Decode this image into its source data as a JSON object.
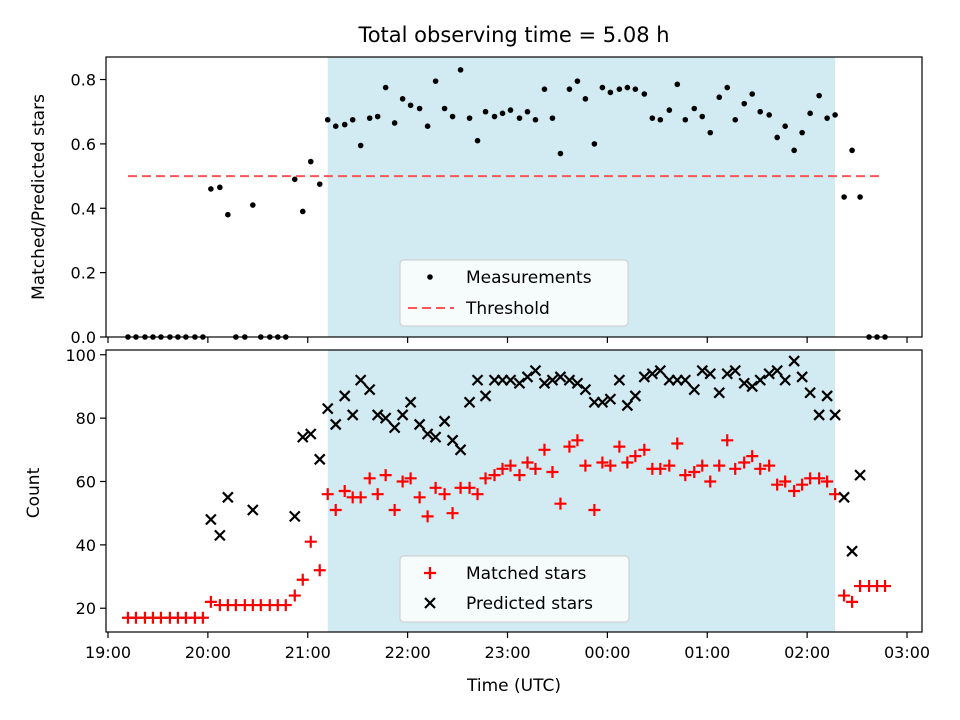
{
  "figure": {
    "title": "Total observing time = 5.08 h"
  },
  "colors": {
    "highlight": "#add8e6",
    "threshold": "#ff5555",
    "matched": "#ff0000",
    "predicted": "#000000",
    "measurement": "#000000"
  },
  "chart_data": [
    {
      "type": "scatter",
      "panel": "top",
      "title": "Total observing time = 5.08 h",
      "xlabel": "",
      "ylabel": "Matched/Predicted stars",
      "x_unit": "hours since 19:00 UTC",
      "xlim": [
        18.98,
        27.15
      ],
      "ylim": [
        0,
        0.87
      ],
      "yticks": [
        0.0,
        0.2,
        0.4,
        0.6,
        0.8
      ],
      "ytick_labels": [
        "0.0",
        "0.2",
        "0.4",
        "0.6",
        "0.8"
      ],
      "highlight_span": [
        21.2,
        26.28
      ],
      "threshold": {
        "value": 0.5,
        "x_range": [
          19.2,
          26.77
        ],
        "name": "Threshold",
        "style": "dashed"
      },
      "legend": {
        "position": "lower-center",
        "entries": [
          "Measurements",
          "Threshold"
        ]
      },
      "series": [
        {
          "name": "Measurements",
          "marker": "dot",
          "points": [
            [
              19.2,
              0
            ],
            [
              19.28,
              0
            ],
            [
              19.37,
              0
            ],
            [
              19.45,
              0
            ],
            [
              19.53,
              0
            ],
            [
              19.62,
              0
            ],
            [
              19.7,
              0
            ],
            [
              19.78,
              0
            ],
            [
              19.87,
              0
            ],
            [
              19.95,
              0
            ],
            [
              20.03,
              0.46
            ],
            [
              20.12,
              0.465
            ],
            [
              20.2,
              0.38
            ],
            [
              20.28,
              0
            ],
            [
              20.37,
              0
            ],
            [
              20.45,
              0.41
            ],
            [
              20.53,
              0
            ],
            [
              20.62,
              0
            ],
            [
              20.7,
              0
            ],
            [
              20.78,
              0
            ],
            [
              20.87,
              0.49
            ],
            [
              20.95,
              0.39
            ],
            [
              21.03,
              0.545
            ],
            [
              21.12,
              0.475
            ],
            [
              21.2,
              0.675
            ],
            [
              21.28,
              0.655
            ],
            [
              21.37,
              0.66
            ],
            [
              21.45,
              0.675
            ],
            [
              21.53,
              0.595
            ],
            [
              21.62,
              0.68
            ],
            [
              21.7,
              0.685
            ],
            [
              21.78,
              0.775
            ],
            [
              21.87,
              0.665
            ],
            [
              21.95,
              0.74
            ],
            [
              22.03,
              0.72
            ],
            [
              22.12,
              0.71
            ],
            [
              22.2,
              0.655
            ],
            [
              22.28,
              0.795
            ],
            [
              22.37,
              0.71
            ],
            [
              22.45,
              0.685
            ],
            [
              22.53,
              0.83
            ],
            [
              22.62,
              0.68
            ],
            [
              22.7,
              0.61
            ],
            [
              22.78,
              0.7
            ],
            [
              22.87,
              0.685
            ],
            [
              22.95,
              0.695
            ],
            [
              23.03,
              0.705
            ],
            [
              23.12,
              0.68
            ],
            [
              23.2,
              0.7
            ],
            [
              23.28,
              0.675
            ],
            [
              23.37,
              0.77
            ],
            [
              23.45,
              0.68
            ],
            [
              23.53,
              0.57
            ],
            [
              23.62,
              0.77
            ],
            [
              23.7,
              0.795
            ],
            [
              23.78,
              0.74
            ],
            [
              23.87,
              0.6
            ],
            [
              23.95,
              0.775
            ],
            [
              24.03,
              0.76
            ],
            [
              24.12,
              0.77
            ],
            [
              24.2,
              0.775
            ],
            [
              24.28,
              0.77
            ],
            [
              24.37,
              0.755
            ],
            [
              24.45,
              0.68
            ],
            [
              24.53,
              0.675
            ],
            [
              24.62,
              0.705
            ],
            [
              24.7,
              0.785
            ],
            [
              24.78,
              0.675
            ],
            [
              24.87,
              0.71
            ],
            [
              24.95,
              0.685
            ],
            [
              25.03,
              0.635
            ],
            [
              25.12,
              0.745
            ],
            [
              25.2,
              0.775
            ],
            [
              25.28,
              0.675
            ],
            [
              25.37,
              0.725
            ],
            [
              25.45,
              0.755
            ],
            [
              25.53,
              0.7
            ],
            [
              25.62,
              0.69
            ],
            [
              25.7,
              0.62
            ],
            [
              25.78,
              0.655
            ],
            [
              25.87,
              0.58
            ],
            [
              25.95,
              0.635
            ],
            [
              26.03,
              0.695
            ],
            [
              26.12,
              0.75
            ],
            [
              26.2,
              0.68
            ],
            [
              26.28,
              0.69
            ],
            [
              26.37,
              0.435
            ],
            [
              26.45,
              0.58
            ],
            [
              26.53,
              0.435
            ],
            [
              26.62,
              0
            ],
            [
              26.7,
              0
            ],
            [
              26.78,
              0
            ]
          ]
        }
      ]
    },
    {
      "type": "scatter",
      "panel": "bottom",
      "xlabel": "Time (UTC)",
      "ylabel": "Count",
      "x_unit": "hours since 19:00 UTC",
      "xlim": [
        18.98,
        27.15
      ],
      "ylim": [
        12.5,
        101.5
      ],
      "yticks": [
        20,
        40,
        60,
        80,
        100
      ],
      "ytick_labels": [
        "20",
        "40",
        "60",
        "80",
        "100"
      ],
      "xticks": [
        19,
        20,
        21,
        22,
        23,
        24,
        25,
        26,
        27
      ],
      "xtick_labels": [
        "19:00",
        "20:00",
        "21:00",
        "22:00",
        "23:00",
        "00:00",
        "01:00",
        "02:00",
        "03:00"
      ],
      "highlight_span": [
        21.2,
        26.28
      ],
      "legend": {
        "position": "lower-center",
        "entries": [
          "Matched stars",
          "Predicted stars"
        ]
      },
      "series": [
        {
          "name": "Matched stars",
          "marker": "plus",
          "points": [
            [
              19.2,
              17
            ],
            [
              19.28,
              17
            ],
            [
              19.37,
              17
            ],
            [
              19.45,
              17
            ],
            [
              19.53,
              17
            ],
            [
              19.62,
              17
            ],
            [
              19.7,
              17
            ],
            [
              19.78,
              17
            ],
            [
              19.87,
              17
            ],
            [
              19.95,
              17
            ],
            [
              20.03,
              22
            ],
            [
              20.12,
              21
            ],
            [
              20.2,
              21
            ],
            [
              20.28,
              21
            ],
            [
              20.37,
              21
            ],
            [
              20.45,
              21
            ],
            [
              20.53,
              21
            ],
            [
              20.62,
              21
            ],
            [
              20.7,
              21
            ],
            [
              20.78,
              21
            ],
            [
              20.87,
              24
            ],
            [
              20.95,
              29
            ],
            [
              21.03,
              41
            ],
            [
              21.12,
              32
            ],
            [
              21.2,
              56
            ],
            [
              21.28,
              51
            ],
            [
              21.37,
              57
            ],
            [
              21.45,
              55
            ],
            [
              21.53,
              55
            ],
            [
              21.62,
              61
            ],
            [
              21.7,
              56
            ],
            [
              21.78,
              62
            ],
            [
              21.87,
              51
            ],
            [
              21.95,
              60
            ],
            [
              22.03,
              61
            ],
            [
              22.12,
              55
            ],
            [
              22.2,
              49
            ],
            [
              22.28,
              58
            ],
            [
              22.37,
              56
            ],
            [
              22.45,
              50
            ],
            [
              22.53,
              58
            ],
            [
              22.62,
              58
            ],
            [
              22.7,
              56
            ],
            [
              22.78,
              61
            ],
            [
              22.87,
              62
            ],
            [
              22.95,
              64
            ],
            [
              23.03,
              65
            ],
            [
              23.12,
              62
            ],
            [
              23.2,
              66
            ],
            [
              23.28,
              64
            ],
            [
              23.37,
              70
            ],
            [
              23.45,
              63
            ],
            [
              23.53,
              53
            ],
            [
              23.62,
              71
            ],
            [
              23.7,
              73
            ],
            [
              23.78,
              65
            ],
            [
              23.87,
              51
            ],
            [
              23.95,
              66
            ],
            [
              24.03,
              65
            ],
            [
              24.12,
              71
            ],
            [
              24.2,
              66
            ],
            [
              24.28,
              68
            ],
            [
              24.37,
              70
            ],
            [
              24.45,
              64
            ],
            [
              24.53,
              64
            ],
            [
              24.62,
              65
            ],
            [
              24.7,
              72
            ],
            [
              24.78,
              62
            ],
            [
              24.87,
              63
            ],
            [
              24.95,
              65
            ],
            [
              25.03,
              60
            ],
            [
              25.12,
              65
            ],
            [
              25.2,
              73
            ],
            [
              25.28,
              64
            ],
            [
              25.37,
              66
            ],
            [
              25.45,
              68
            ],
            [
              25.53,
              64
            ],
            [
              25.62,
              65
            ],
            [
              25.7,
              59
            ],
            [
              25.78,
              60
            ],
            [
              25.87,
              57
            ],
            [
              25.95,
              59
            ],
            [
              26.03,
              61
            ],
            [
              26.12,
              61
            ],
            [
              26.2,
              60
            ],
            [
              26.28,
              56
            ],
            [
              26.37,
              24
            ],
            [
              26.45,
              22
            ],
            [
              26.53,
              27
            ],
            [
              26.62,
              27
            ],
            [
              26.7,
              27
            ],
            [
              26.78,
              27
            ]
          ]
        },
        {
          "name": "Predicted stars",
          "marker": "x",
          "points": [
            [
              20.03,
              48
            ],
            [
              20.12,
              43
            ],
            [
              20.2,
              55
            ],
            [
              20.45,
              51
            ],
            [
              20.87,
              49
            ],
            [
              20.95,
              74
            ],
            [
              21.03,
              75
            ],
            [
              21.12,
              67
            ],
            [
              21.2,
              83
            ],
            [
              21.28,
              78
            ],
            [
              21.37,
              87
            ],
            [
              21.45,
              81
            ],
            [
              21.53,
              92
            ],
            [
              21.62,
              89
            ],
            [
              21.7,
              81
            ],
            [
              21.78,
              80
            ],
            [
              21.87,
              77
            ],
            [
              21.95,
              81
            ],
            [
              22.03,
              85
            ],
            [
              22.12,
              78
            ],
            [
              22.2,
              75
            ],
            [
              22.28,
              74
            ],
            [
              22.37,
              79
            ],
            [
              22.45,
              73
            ],
            [
              22.53,
              70
            ],
            [
              22.62,
              85
            ],
            [
              22.7,
              92
            ],
            [
              22.78,
              87
            ],
            [
              22.87,
              92
            ],
            [
              22.95,
              92
            ],
            [
              23.03,
              92
            ],
            [
              23.12,
              91
            ],
            [
              23.2,
              93
            ],
            [
              23.28,
              95
            ],
            [
              23.37,
              91
            ],
            [
              23.45,
              92
            ],
            [
              23.53,
              93
            ],
            [
              23.62,
              92
            ],
            [
              23.7,
              91
            ],
            [
              23.78,
              89
            ],
            [
              23.87,
              85
            ],
            [
              23.95,
              85
            ],
            [
              24.03,
              86
            ],
            [
              24.12,
              92
            ],
            [
              24.2,
              84
            ],
            [
              24.28,
              87
            ],
            [
              24.37,
              93
            ],
            [
              24.45,
              94
            ],
            [
              24.53,
              95
            ],
            [
              24.62,
              92
            ],
            [
              24.7,
              92
            ],
            [
              24.78,
              92
            ],
            [
              24.87,
              89
            ],
            [
              24.95,
              95
            ],
            [
              25.03,
              94
            ],
            [
              25.12,
              88
            ],
            [
              25.2,
              94
            ],
            [
              25.28,
              95
            ],
            [
              25.37,
              91
            ],
            [
              25.45,
              90
            ],
            [
              25.53,
              92
            ],
            [
              25.62,
              94
            ],
            [
              25.7,
              95
            ],
            [
              25.78,
              92
            ],
            [
              25.87,
              98
            ],
            [
              25.95,
              93
            ],
            [
              26.03,
              88
            ],
            [
              26.12,
              81
            ],
            [
              26.2,
              87
            ],
            [
              26.28,
              81
            ],
            [
              26.37,
              55
            ],
            [
              26.45,
              38
            ],
            [
              26.53,
              62
            ]
          ]
        }
      ]
    }
  ]
}
